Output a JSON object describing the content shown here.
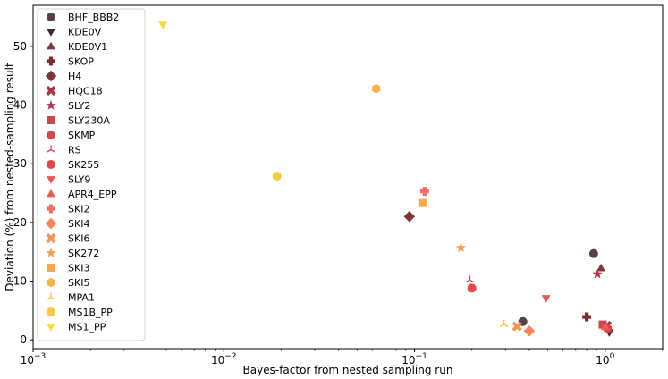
{
  "chart_data": {
    "type": "scatter",
    "xlabel": "Bayes-factor from nested sampling run",
    "ylabel": "Deviation (%) from nested-sampling result",
    "xscale": "log",
    "xlim": [
      0.001,
      2.0
    ],
    "ylim": [
      -1.5,
      57
    ],
    "x_ticks": [
      {
        "value": 0.001,
        "base": "10",
        "exp": "−3"
      },
      {
        "value": 0.01,
        "base": "10",
        "exp": "−2"
      },
      {
        "value": 0.1,
        "base": "10",
        "exp": "−1"
      },
      {
        "value": 1,
        "base": "10",
        "exp": "0"
      }
    ],
    "y_ticks": [
      0,
      10,
      20,
      30,
      40,
      50
    ],
    "grid": false,
    "legend_position": "upper-left",
    "series": [
      {
        "name": "BHF_BBB2",
        "marker": "circle",
        "color": "#5b4040",
        "points": [
          {
            "x": 0.87,
            "y": 14.7
          },
          {
            "x": 0.37,
            "y": 3.1
          }
        ]
      },
      {
        "name": "KDE0V",
        "marker": "triangle-down",
        "color": "#3e2a2a",
        "points": [
          {
            "x": 1.05,
            "y": 1.3
          }
        ]
      },
      {
        "name": "KDE0V1",
        "marker": "triangle-up",
        "color": "#7b3a3c",
        "points": [
          {
            "x": 0.95,
            "y": 12.2
          }
        ]
      },
      {
        "name": "SKOP",
        "marker": "plus",
        "color": "#7d2b33",
        "points": [
          {
            "x": 0.8,
            "y": 3.9
          }
        ]
      },
      {
        "name": "H4",
        "marker": "diamond",
        "color": "#7c3836",
        "points": [
          {
            "x": 0.094,
            "y": 21.0
          }
        ]
      },
      {
        "name": "HQC18",
        "marker": "x",
        "color": "#a63a40",
        "points": [
          {
            "x": 1.02,
            "y": 2.4
          }
        ]
      },
      {
        "name": "SLY2",
        "marker": "star",
        "color": "#b23a48",
        "points": [
          {
            "x": 0.91,
            "y": 11.2
          }
        ]
      },
      {
        "name": "SLY230A",
        "marker": "square",
        "color": "#cf454c",
        "points": [
          {
            "x": 0.97,
            "y": 2.6
          }
        ]
      },
      {
        "name": "SKMP",
        "marker": "hexagon",
        "color": "#d9434a",
        "points": [
          {
            "x": 1.03,
            "y": 1.9
          }
        ]
      },
      {
        "name": "RS",
        "marker": "tri-down",
        "color": "#e04350",
        "points": [
          {
            "x": 0.195,
            "y": 10.2
          }
        ]
      },
      {
        "name": "SK255",
        "marker": "circle",
        "color": "#ea4646",
        "points": [
          {
            "x": 0.2,
            "y": 8.8
          }
        ]
      },
      {
        "name": "SLY9",
        "marker": "triangle-down",
        "color": "#ef5252",
        "points": [
          {
            "x": 0.49,
            "y": 7.1
          }
        ]
      },
      {
        "name": "APR4_EPP",
        "marker": "triangle-up",
        "color": "#f4594c",
        "points": [
          {
            "x": 1.0,
            "y": 2.2
          }
        ]
      },
      {
        "name": "SKI2",
        "marker": "plus",
        "color": "#f76c5c",
        "points": [
          {
            "x": 0.113,
            "y": 25.3
          }
        ]
      },
      {
        "name": "SKI4",
        "marker": "diamond",
        "color": "#f78456",
        "points": [
          {
            "x": 0.4,
            "y": 1.5
          }
        ]
      },
      {
        "name": "SKI6",
        "marker": "x",
        "color": "#f7924e",
        "points": [
          {
            "x": 0.345,
            "y": 2.3
          }
        ]
      },
      {
        "name": "SK272",
        "marker": "star",
        "color": "#f6a04d",
        "points": [
          {
            "x": 0.175,
            "y": 15.7
          }
        ]
      },
      {
        "name": "SKI3",
        "marker": "square",
        "color": "#f9a849",
        "points": [
          {
            "x": 0.11,
            "y": 23.3
          }
        ]
      },
      {
        "name": "SKI5",
        "marker": "hexagon",
        "color": "#f9b343",
        "points": [
          {
            "x": 0.063,
            "y": 42.8
          }
        ]
      },
      {
        "name": "MPA1",
        "marker": "tri-down",
        "color": "#fac03d",
        "points": [
          {
            "x": 0.295,
            "y": 2.6
          }
        ]
      },
      {
        "name": "MS1B_PP",
        "marker": "circle",
        "color": "#fbc93a",
        "points": [
          {
            "x": 0.019,
            "y": 27.9
          }
        ]
      },
      {
        "name": "MS1_PP",
        "marker": "triangle-down",
        "color": "#fbe030",
        "points": [
          {
            "x": 0.0048,
            "y": 53.7
          }
        ]
      }
    ]
  }
}
